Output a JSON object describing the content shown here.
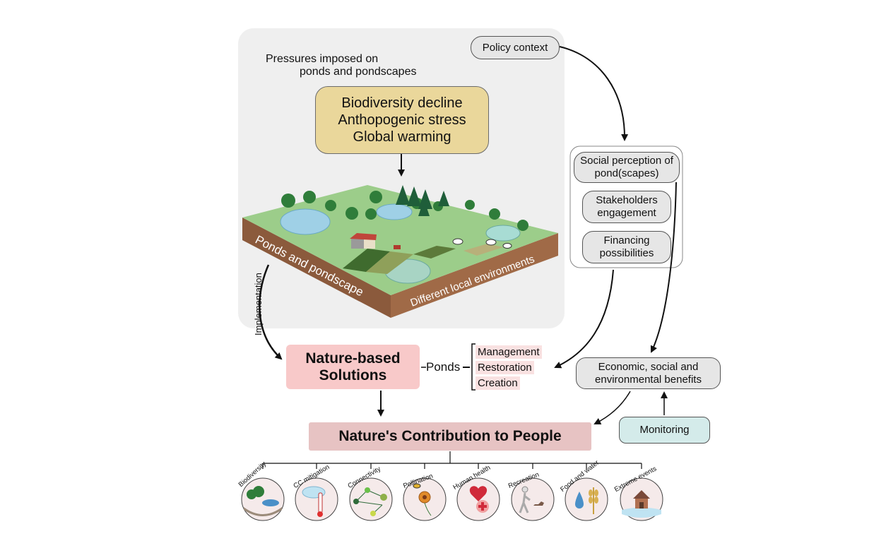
{
  "pressures_heading": [
    "Pressures imposed on",
    "ponds and pondscapes"
  ],
  "pressures": [
    "Biodiversity decline",
    "Anthopogenic stress",
    "Global warming"
  ],
  "landscape": {
    "front_label": "Ponds and pondscape",
    "side_label": "Different local environments"
  },
  "policy_context": "Policy context",
  "social_items": [
    "Social perception of pond(scapes)",
    "Stakeholders engagement",
    "Financing possibilities"
  ],
  "implementation_label": "Implementation",
  "nbs_title": "Nature-based Solutions",
  "ponds_label": "Ponds",
  "actions": [
    "Management",
    "Restoration",
    "Creation"
  ],
  "benefits": "Economic, social and environmental benefits",
  "monitoring": "Monitoring",
  "ncp_title": "Nature's Contribution to People",
  "ncp_items": [
    "Biodiversity",
    "CC mitigation",
    "Connectivity",
    "Pollination",
    "Human health",
    "Recreation",
    "Food and water",
    "Extreme events"
  ],
  "colors": {
    "panel": "#efefef",
    "pressure_box": "#ead79b",
    "nbs_box": "#f8c9c9",
    "ncp_box": "#e7c3c3",
    "monitoring_box": "#d4ebea",
    "grass": "#9ccd8a",
    "soil": "#8b5a3c"
  }
}
